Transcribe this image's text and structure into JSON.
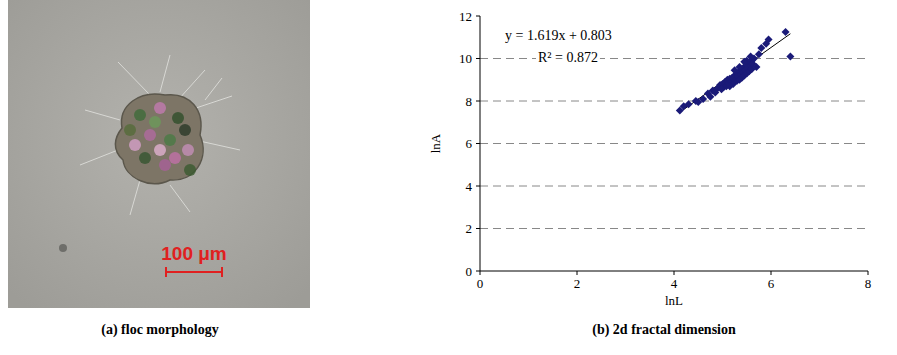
{
  "chart_data": {
    "type": "scatter",
    "title": "(b) 2d fractal dimension",
    "x_label": "lnL",
    "y_label": "lnA",
    "annotations": [
      "y = 1.619x + 0.803",
      "R² = 0.872"
    ],
    "trendline": {
      "slope": 1.619,
      "intercept": 0.803
    },
    "x": [
      4.12,
      4.2,
      4.3,
      4.45,
      4.5,
      4.6,
      4.7,
      4.75,
      4.8,
      4.85,
      4.9,
      4.95,
      5.0,
      5.02,
      5.05,
      5.08,
      5.1,
      5.12,
      5.15,
      5.18,
      5.2,
      5.22,
      5.25,
      5.27,
      5.3,
      5.3,
      5.32,
      5.35,
      5.35,
      5.38,
      5.4,
      5.4,
      5.42,
      5.45,
      5.45,
      5.47,
      5.5,
      5.5,
      5.52,
      5.55,
      5.55,
      5.57,
      5.6,
      5.6,
      5.62,
      5.65,
      5.5,
      5.45,
      5.58,
      5.7,
      5.75,
      5.8,
      5.9,
      5.95,
      6.3,
      6.4,
      5.25,
      5.15,
      4.98,
      5.35
    ],
    "values": [
      7.55,
      7.75,
      7.85,
      8.0,
      7.95,
      8.1,
      8.35,
      8.2,
      8.5,
      8.4,
      8.6,
      8.75,
      8.8,
      8.65,
      8.9,
      8.7,
      9.0,
      8.85,
      9.05,
      8.9,
      9.1,
      8.8,
      9.2,
      9.0,
      9.3,
      8.95,
      9.15,
      9.4,
      9.0,
      9.25,
      9.5,
      9.1,
      9.35,
      9.6,
      9.2,
      9.45,
      9.7,
      9.3,
      9.55,
      9.8,
      9.4,
      9.65,
      9.9,
      9.5,
      9.75,
      10.0,
      9.9,
      9.85,
      10.1,
      9.6,
      10.2,
      10.5,
      10.7,
      10.9,
      11.25,
      10.1,
      9.45,
      8.7,
      8.55,
      9.6
    ],
    "color": "#1a1a78",
    "marker": "diamond",
    "xlim": [
      0,
      8
    ],
    "xticks": [
      0,
      2,
      4,
      6,
      8
    ],
    "ylim": [
      0,
      12
    ],
    "yticks": [
      0,
      2,
      4,
      6,
      8,
      10,
      12
    ],
    "grid": true
  },
  "image_panel": {
    "scale_bar_label": "100 μm",
    "caption": "(a) floc morphology"
  }
}
